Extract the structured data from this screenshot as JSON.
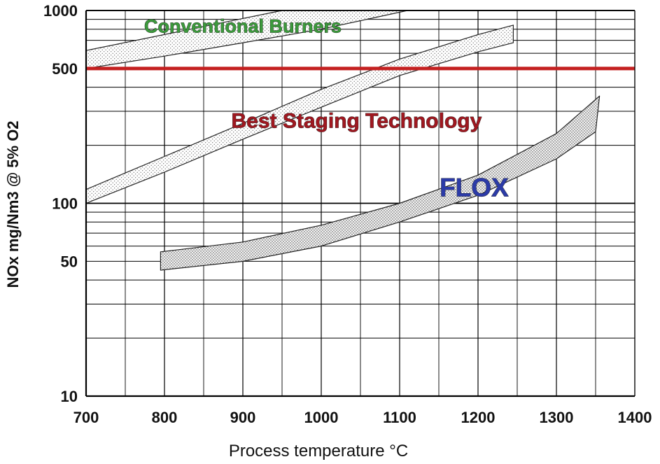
{
  "chart_data": {
    "type": "area",
    "xlabel": "Process temperature  °C",
    "ylabel": "NOx  mg/Nm3 @ 5% O2",
    "xlim": [
      700,
      1400
    ],
    "ylim": [
      10,
      1000
    ],
    "yscale": "log",
    "grid": true,
    "legend": "none",
    "x_ticks": [
      700,
      800,
      900,
      1000,
      1100,
      1200,
      1300,
      1400
    ],
    "y_ticks": [
      10,
      50,
      100,
      500,
      1000
    ],
    "reference_line": {
      "y": 500,
      "color": "#c42020"
    },
    "series": [
      {
        "name": "Conventional Burners",
        "color": "#3c9a3c",
        "label_x": 900,
        "label_y": 815,
        "upper": {
          "x": [
            700,
            950,
            1110
          ],
          "y": [
            620,
            1000,
            1000
          ]
        },
        "lower": {
          "x": [
            700,
            800,
            900,
            1000,
            1110
          ],
          "y": [
            500,
            580,
            680,
            800,
            1000
          ]
        }
      },
      {
        "name": "Best Staging Technology",
        "color": "#a01820",
        "label_x": 1045,
        "label_y": 264,
        "upper": {
          "x": [
            700,
            800,
            900,
            1000,
            1100,
            1200,
            1245
          ],
          "y": [
            118,
            175,
            260,
            390,
            560,
            750,
            840
          ]
        },
        "lower": {
          "x": [
            700,
            800,
            900,
            1000,
            1100,
            1200,
            1245
          ],
          "y": [
            100,
            145,
            215,
            315,
            460,
            610,
            680
          ]
        }
      },
      {
        "name": "FLOX",
        "color": "#2c3ba8",
        "label_x": 1195,
        "label_y": 118,
        "upper": {
          "x": [
            795,
            900,
            1000,
            1100,
            1200,
            1300,
            1355
          ],
          "y": [
            56,
            63,
            77,
            100,
            140,
            230,
            360
          ]
        },
        "lower": {
          "x": [
            795,
            900,
            1000,
            1100,
            1200,
            1300,
            1350
          ],
          "y": [
            45,
            50,
            60,
            80,
            110,
            170,
            235
          ]
        }
      }
    ]
  }
}
